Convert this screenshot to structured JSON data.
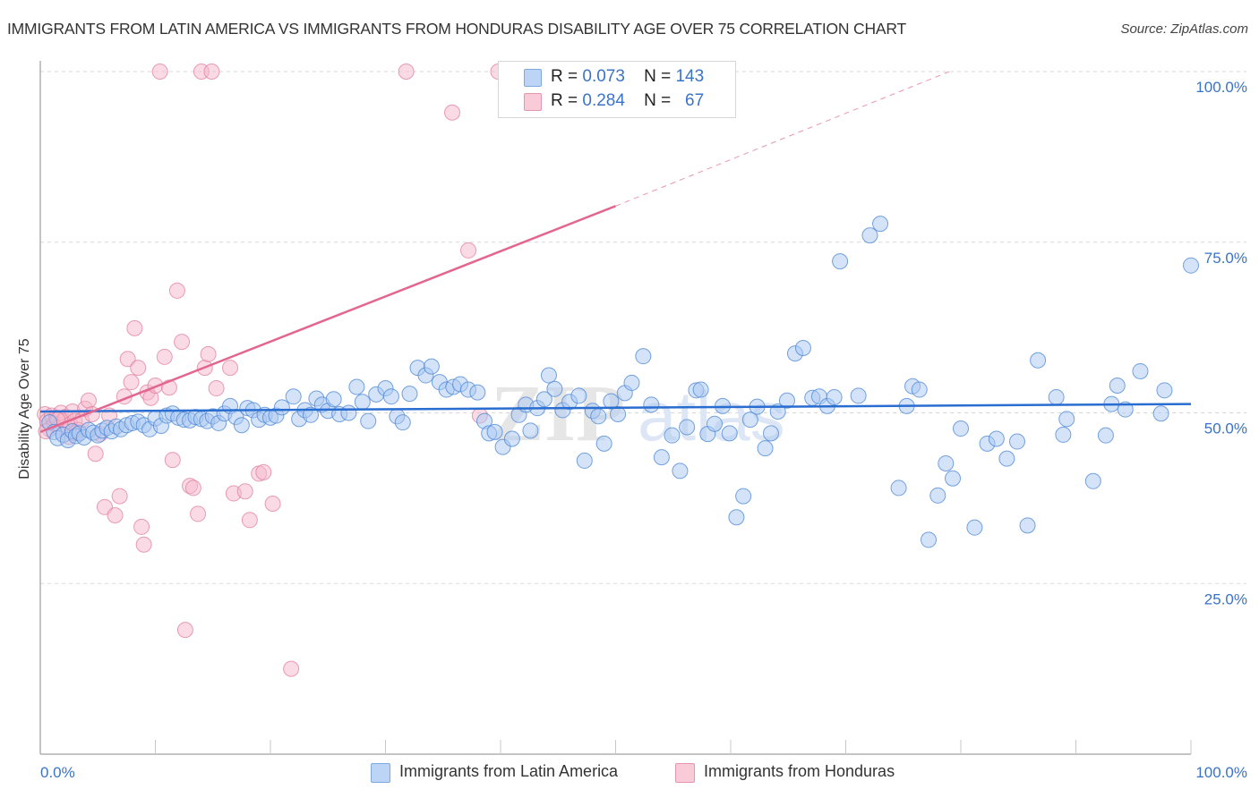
{
  "header": {
    "title": "IMMIGRANTS FROM LATIN AMERICA VS IMMIGRANTS FROM HONDURAS DISABILITY AGE OVER 75 CORRELATION CHART",
    "source": "Source: ZipAtlas.com"
  },
  "stats_legend": {
    "rows": [
      {
        "r_label": "R =",
        "r_value": "0.073",
        "n_label": "N =",
        "n_value": "143",
        "color": "#a9c8f2"
      },
      {
        "r_label": "R =",
        "r_value": "0.284",
        "n_label": "N =",
        "n_value": "67",
        "color": "#f6b8cb"
      }
    ]
  },
  "watermark": {
    "zip": "ZIP",
    "atlas": "atlas"
  },
  "colors": {
    "blue_fill": "#a9c8f2",
    "blue_stroke": "#4a86d6",
    "blue_line": "#2a6dd0",
    "pink_fill": "#f6b8cb",
    "pink_stroke": "#e07898",
    "pink_line": "#e2668f",
    "tick_text": "#3b73c7",
    "grid": "#d8d8d8"
  },
  "chart_data": {
    "type": "scatter",
    "title": "IMMIGRANTS FROM LATIN AMERICA VS IMMIGRANTS FROM HONDURAS DISABILITY AGE OVER 75 CORRELATION CHART",
    "xlabel": "",
    "ylabel": "Disability Age Over 75",
    "xlim": [
      0,
      100
    ],
    "ylim": [
      0,
      100
    ],
    "x_tick_labels": [
      "0.0%",
      "100.0%"
    ],
    "y_tick_labels": [
      "100.0%",
      "75.0%",
      "50.0%",
      "25.0%"
    ],
    "y_ticks": [
      100,
      75,
      50,
      25
    ],
    "grid": true,
    "legend_position": "bottom-center",
    "series": [
      {
        "name": "Immigrants from Latin America",
        "color": "#a9c8f2",
        "R": 0.073,
        "N": 143,
        "trend": {
          "x": [
            0,
            100
          ],
          "y": [
            50.2,
            51.3
          ],
          "style": "solid"
        },
        "points": [
          [
            0.8,
            48.6
          ],
          [
            1.2,
            47.2
          ],
          [
            1.5,
            46.3
          ],
          [
            2.0,
            46.8
          ],
          [
            2.4,
            46.0
          ],
          [
            2.8,
            47.3
          ],
          [
            3.1,
            46.6
          ],
          [
            3.4,
            47.0
          ],
          [
            3.8,
            46.4
          ],
          [
            4.2,
            47.5
          ],
          [
            4.6,
            47.1
          ],
          [
            5.0,
            46.7
          ],
          [
            5.4,
            47.4
          ],
          [
            5.8,
            47.8
          ],
          [
            6.2,
            47.3
          ],
          [
            6.6,
            48.0
          ],
          [
            7.0,
            47.6
          ],
          [
            7.5,
            48.2
          ],
          [
            8.0,
            48.5
          ],
          [
            8.5,
            48.7
          ],
          [
            9.0,
            48.2
          ],
          [
            9.5,
            47.6
          ],
          [
            10.0,
            49.2
          ],
          [
            10.5,
            48.1
          ],
          [
            11.0,
            49.6
          ],
          [
            11.5,
            49.9
          ],
          [
            12.0,
            49.3
          ],
          [
            12.5,
            49.0
          ],
          [
            13.0,
            48.9
          ],
          [
            13.5,
            49.4
          ],
          [
            14.0,
            49.1
          ],
          [
            14.5,
            48.8
          ],
          [
            15.0,
            49.5
          ],
          [
            15.5,
            48.5
          ],
          [
            16.0,
            49.9
          ],
          [
            16.5,
            51.0
          ],
          [
            17.0,
            49.4
          ],
          [
            17.5,
            48.2
          ],
          [
            18.0,
            50.7
          ],
          [
            18.5,
            50.4
          ],
          [
            19.0,
            49.0
          ],
          [
            19.5,
            49.7
          ],
          [
            20.0,
            49.3
          ],
          [
            20.5,
            49.6
          ],
          [
            21.0,
            50.8
          ],
          [
            22.0,
            52.4
          ],
          [
            22.5,
            49.1
          ],
          [
            23.0,
            50.4
          ],
          [
            23.5,
            49.7
          ],
          [
            24.0,
            52.1
          ],
          [
            24.5,
            51.2
          ],
          [
            25.0,
            50.3
          ],
          [
            25.5,
            52.0
          ],
          [
            26.0,
            49.8
          ],
          [
            26.8,
            50.0
          ],
          [
            27.5,
            53.8
          ],
          [
            28.0,
            51.6
          ],
          [
            28.5,
            48.8
          ],
          [
            29.2,
            52.7
          ],
          [
            30.0,
            53.6
          ],
          [
            30.5,
            52.4
          ],
          [
            31.0,
            49.5
          ],
          [
            31.5,
            48.6
          ],
          [
            32.1,
            52.8
          ],
          [
            32.8,
            56.6
          ],
          [
            33.5,
            55.5
          ],
          [
            34.0,
            56.8
          ],
          [
            34.7,
            54.5
          ],
          [
            35.3,
            53.4
          ],
          [
            35.9,
            53.8
          ],
          [
            36.5,
            54.2
          ],
          [
            37.2,
            53.4
          ],
          [
            38.0,
            53.0
          ],
          [
            38.6,
            48.8
          ],
          [
            39.0,
            47.0
          ],
          [
            39.5,
            47.2
          ],
          [
            40.2,
            45.0
          ],
          [
            41.0,
            46.2
          ],
          [
            41.6,
            49.7
          ],
          [
            42.2,
            51.2
          ],
          [
            42.6,
            47.4
          ],
          [
            43.2,
            50.7
          ],
          [
            43.8,
            52.0
          ],
          [
            44.2,
            55.5
          ],
          [
            44.7,
            53.5
          ],
          [
            45.4,
            50.4
          ],
          [
            46.0,
            51.6
          ],
          [
            46.8,
            52.5
          ],
          [
            47.3,
            43.0
          ],
          [
            48.0,
            50.3
          ],
          [
            48.5,
            49.5
          ],
          [
            49.0,
            45.5
          ],
          [
            49.6,
            51.7
          ],
          [
            50.2,
            49.8
          ],
          [
            50.8,
            52.9
          ],
          [
            51.4,
            54.4
          ],
          [
            52.4,
            58.3
          ],
          [
            53.1,
            51.2
          ],
          [
            54.0,
            43.5
          ],
          [
            54.9,
            46.7
          ],
          [
            55.6,
            41.5
          ],
          [
            56.2,
            47.9
          ],
          [
            57.0,
            53.3
          ],
          [
            57.4,
            53.4
          ],
          [
            58.0,
            46.9
          ],
          [
            58.6,
            48.4
          ],
          [
            59.3,
            51.0
          ],
          [
            59.9,
            47.0
          ],
          [
            60.5,
            34.7
          ],
          [
            61.1,
            37.8
          ],
          [
            61.7,
            49.0
          ],
          [
            62.3,
            50.9
          ],
          [
            63.0,
            44.8
          ],
          [
            63.5,
            47.0
          ],
          [
            64.1,
            50.2
          ],
          [
            64.9,
            51.8
          ],
          [
            65.6,
            58.7
          ],
          [
            66.3,
            59.5
          ],
          [
            67.1,
            52.2
          ],
          [
            67.7,
            52.4
          ],
          [
            68.4,
            51.0
          ],
          [
            69.0,
            52.3
          ],
          [
            69.5,
            72.2
          ],
          [
            71.1,
            52.5
          ],
          [
            72.1,
            76.0
          ],
          [
            73.0,
            77.7
          ],
          [
            74.6,
            39.0
          ],
          [
            75.3,
            51.0
          ],
          [
            75.8,
            53.9
          ],
          [
            76.4,
            53.4
          ],
          [
            77.2,
            31.4
          ],
          [
            78.0,
            37.9
          ],
          [
            78.7,
            42.6
          ],
          [
            79.3,
            40.4
          ],
          [
            80.0,
            47.7
          ],
          [
            81.2,
            33.2
          ],
          [
            82.3,
            45.5
          ],
          [
            83.1,
            46.2
          ],
          [
            84.0,
            43.3
          ],
          [
            84.9,
            45.8
          ],
          [
            85.8,
            33.5
          ],
          [
            86.7,
            57.7
          ],
          [
            88.3,
            52.3
          ],
          [
            88.9,
            46.8
          ],
          [
            89.2,
            49.1
          ],
          [
            91.5,
            40.0
          ],
          [
            92.6,
            46.7
          ],
          [
            93.1,
            51.3
          ],
          [
            93.6,
            54.0
          ],
          [
            94.3,
            50.5
          ],
          [
            95.6,
            56.1
          ],
          [
            97.4,
            49.9
          ],
          [
            97.7,
            53.3
          ],
          [
            100.0,
            71.6
          ]
        ]
      },
      {
        "name": "Immigrants from Honduras",
        "color": "#f6b8cb",
        "R": 0.284,
        "N": 67,
        "trend": {
          "x": [
            0,
            50,
            79
          ],
          "y": [
            47.2,
            80.3,
            100
          ],
          "style": "solid-then-dashed",
          "solid_until_x": 50
        },
        "points": [
          [
            0.4,
            49.8
          ],
          [
            0.6,
            48.8
          ],
          [
            0.8,
            47.6
          ],
          [
            1.0,
            49.6
          ],
          [
            1.2,
            48.4
          ],
          [
            1.4,
            49.3
          ],
          [
            1.6,
            47.9
          ],
          [
            1.8,
            50.0
          ],
          [
            2.0,
            48.8
          ],
          [
            2.2,
            49.4
          ],
          [
            2.4,
            47.7
          ],
          [
            2.6,
            48.3
          ],
          [
            2.8,
            50.2
          ],
          [
            3.0,
            48.8
          ],
          [
            3.3,
            47.5
          ],
          [
            3.6,
            48.9
          ],
          [
            3.9,
            50.6
          ],
          [
            4.2,
            51.8
          ],
          [
            4.5,
            49.8
          ],
          [
            4.8,
            44.0
          ],
          [
            5.2,
            46.9
          ],
          [
            5.6,
            36.2
          ],
          [
            6.0,
            49.6
          ],
          [
            6.5,
            35.0
          ],
          [
            6.9,
            37.8
          ],
          [
            7.3,
            52.4
          ],
          [
            7.6,
            57.9
          ],
          [
            7.9,
            54.5
          ],
          [
            8.2,
            62.4
          ],
          [
            8.5,
            56.6
          ],
          [
            8.8,
            33.3
          ],
          [
            9.0,
            30.7
          ],
          [
            9.3,
            53.0
          ],
          [
            9.6,
            52.2
          ],
          [
            10.0,
            54.0
          ],
          [
            10.4,
            100.0
          ],
          [
            10.8,
            58.2
          ],
          [
            11.2,
            53.7
          ],
          [
            11.5,
            43.1
          ],
          [
            11.9,
            67.9
          ],
          [
            12.3,
            60.4
          ],
          [
            12.6,
            18.2
          ],
          [
            13.0,
            39.3
          ],
          [
            13.3,
            39.0
          ],
          [
            13.7,
            35.2
          ],
          [
            14.0,
            100.0
          ],
          [
            14.3,
            56.6
          ],
          [
            14.6,
            58.6
          ],
          [
            14.9,
            100.0
          ],
          [
            15.3,
            53.6
          ],
          [
            16.5,
            56.6
          ],
          [
            16.8,
            38.2
          ],
          [
            17.8,
            38.5
          ],
          [
            18.2,
            34.3
          ],
          [
            19.0,
            41.1
          ],
          [
            19.4,
            41.3
          ],
          [
            20.2,
            36.7
          ],
          [
            21.8,
            12.5
          ],
          [
            31.8,
            100.0
          ],
          [
            39.8,
            100.0
          ],
          [
            35.8,
            94.0
          ],
          [
            37.2,
            73.8
          ],
          [
            38.2,
            49.6
          ],
          [
            2.5,
            46.5
          ],
          [
            3.0,
            47.0
          ],
          [
            0.5,
            47.3
          ],
          [
            1.5,
            49.0
          ]
        ]
      }
    ]
  },
  "bottom_legend": {
    "items": [
      {
        "label": "Immigrants from Latin America",
        "color": "#a9c8f2"
      },
      {
        "label": "Immigrants from Honduras",
        "color": "#f6b8cb"
      }
    ]
  }
}
